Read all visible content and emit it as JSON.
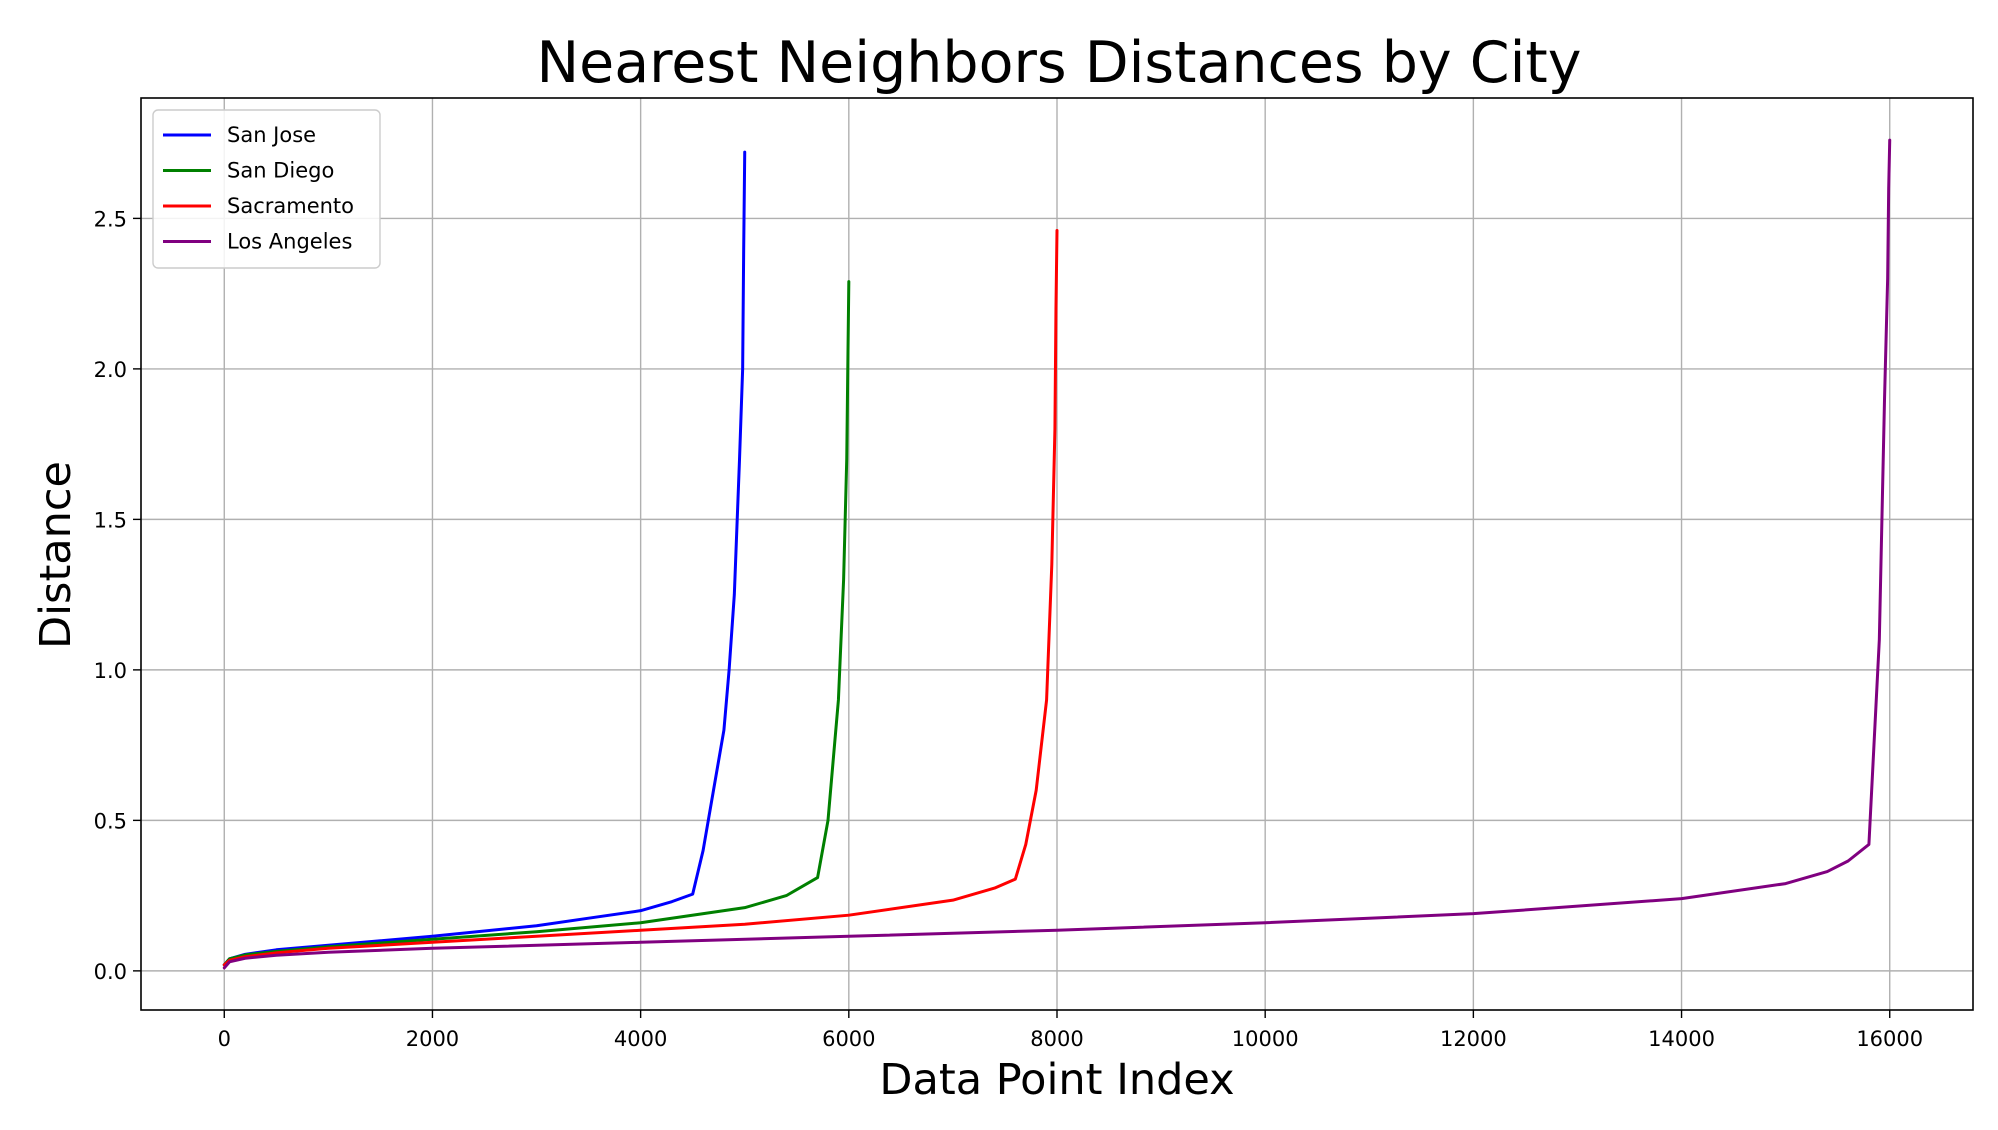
{
  "chart_data": {
    "type": "line",
    "title": "Nearest Neighbors Distances by City",
    "xlabel": "Data Point Index",
    "ylabel": "Distance",
    "xlim": [
      -800,
      16800
    ],
    "ylim": [
      -0.13,
      2.9
    ],
    "xticks": [
      0,
      2000,
      4000,
      6000,
      8000,
      10000,
      12000,
      14000,
      16000
    ],
    "xtick_labels": [
      "0",
      "2000",
      "4000",
      "6000",
      "8000",
      "10000",
      "12000",
      "14000",
      "16000"
    ],
    "yticks": [
      0.0,
      0.5,
      1.0,
      1.5,
      2.0,
      2.5
    ],
    "ytick_labels": [
      "0.0",
      "0.5",
      "1.0",
      "1.5",
      "2.0",
      "2.5"
    ],
    "grid": true,
    "legend_position": "top-left",
    "series": [
      {
        "name": "San Jose",
        "color": "#0000ff",
        "x": [
          0,
          50,
          200,
          500,
          1000,
          2000,
          3000,
          3500,
          4000,
          4300,
          4500,
          4600,
          4700,
          4800,
          4850,
          4900,
          4950,
          4980,
          4990,
          5000
        ],
        "y": [
          0.02,
          0.04,
          0.055,
          0.07,
          0.085,
          0.115,
          0.15,
          0.175,
          0.2,
          0.23,
          0.255,
          0.4,
          0.6,
          0.8,
          1.0,
          1.25,
          1.7,
          2.0,
          2.4,
          2.72
        ]
      },
      {
        "name": "San Diego",
        "color": "#008000",
        "x": [
          0,
          50,
          200,
          500,
          1000,
          2000,
          3000,
          4000,
          5000,
          5400,
          5700,
          5800,
          5850,
          5900,
          5950,
          5980,
          5990,
          6000
        ],
        "y": [
          0.02,
          0.04,
          0.053,
          0.065,
          0.08,
          0.105,
          0.13,
          0.16,
          0.21,
          0.25,
          0.31,
          0.5,
          0.7,
          0.9,
          1.3,
          1.7,
          2.0,
          2.29
        ]
      },
      {
        "name": "Sacramento",
        "color": "#ff0000",
        "x": [
          0,
          50,
          200,
          500,
          1000,
          2000,
          3000,
          4000,
          5000,
          6000,
          7000,
          7400,
          7600,
          7700,
          7800,
          7900,
          7950,
          7980,
          7990,
          8000
        ],
        "y": [
          0.02,
          0.035,
          0.047,
          0.06,
          0.075,
          0.095,
          0.115,
          0.135,
          0.155,
          0.185,
          0.235,
          0.275,
          0.305,
          0.42,
          0.6,
          0.9,
          1.35,
          1.8,
          2.2,
          2.46
        ]
      },
      {
        "name": "Los Angeles",
        "color": "#800080",
        "x": [
          0,
          50,
          200,
          500,
          1000,
          2000,
          4000,
          6000,
          8000,
          10000,
          12000,
          14000,
          15000,
          15400,
          15600,
          15800,
          15900,
          15950,
          15980,
          15990,
          16000
        ],
        "y": [
          0.01,
          0.03,
          0.042,
          0.052,
          0.062,
          0.075,
          0.095,
          0.115,
          0.135,
          0.16,
          0.19,
          0.24,
          0.29,
          0.33,
          0.365,
          0.42,
          1.1,
          1.9,
          2.3,
          2.6,
          2.76
        ]
      }
    ]
  }
}
